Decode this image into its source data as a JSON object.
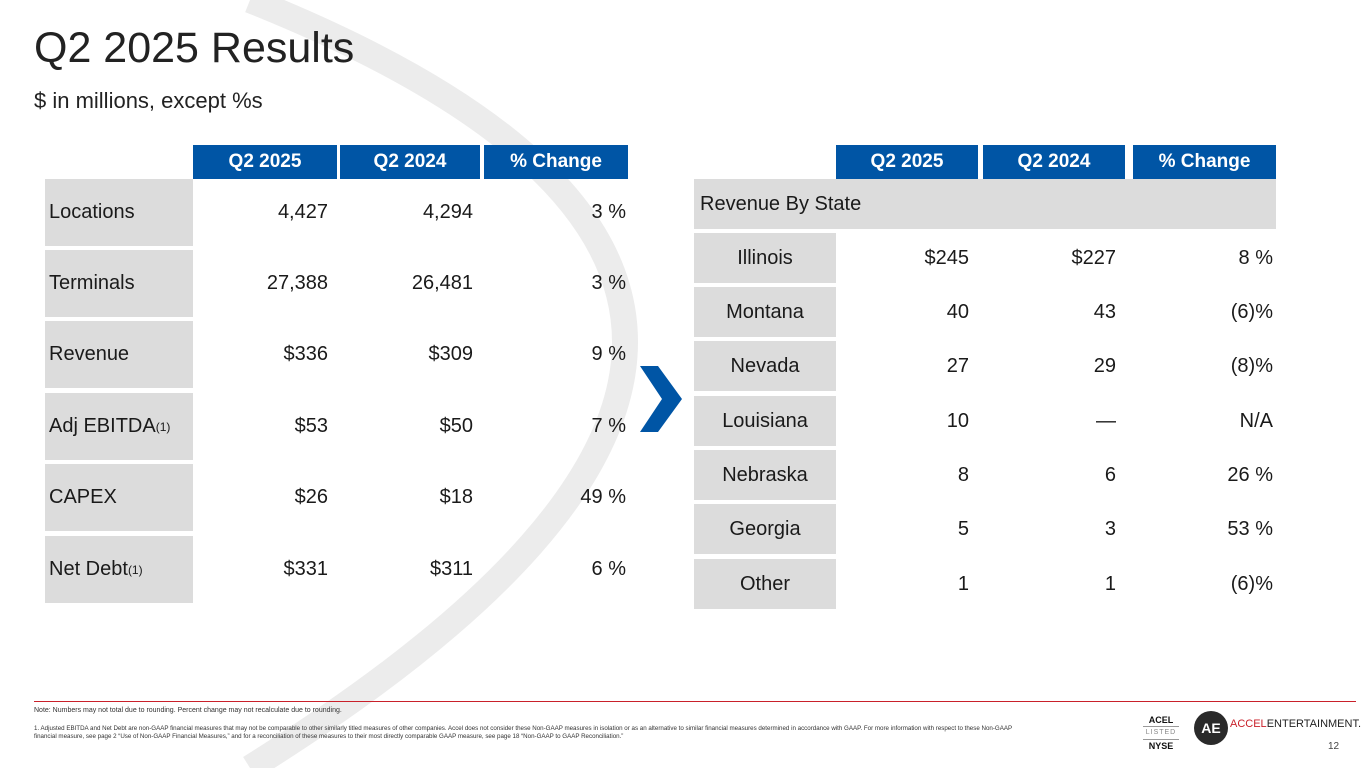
{
  "header": {
    "title": "Q2 2025 Results",
    "subtitle": "$ in millions, except %s"
  },
  "left_table": {
    "columns": [
      "Q2 2025",
      "Q2 2024",
      "% Change"
    ],
    "rows": [
      {
        "label": "Locations",
        "sup": "",
        "q2_2025": "4,427",
        "q2_2024": "4,294",
        "change": "3 %"
      },
      {
        "label": "Terminals",
        "sup": "",
        "q2_2025": "27,388",
        "q2_2024": "26,481",
        "change": "3 %"
      },
      {
        "label": "Revenue",
        "sup": "",
        "q2_2025": "$336",
        "q2_2024": "$309",
        "change": "9 %"
      },
      {
        "label": "Adj EBITDA",
        "sup": "(1)",
        "q2_2025": "$53",
        "q2_2024": "$50",
        "change": "7 %"
      },
      {
        "label": "CAPEX",
        "sup": "",
        "q2_2025": "$26",
        "q2_2024": "$18",
        "change": "49 %"
      },
      {
        "label": "Net Debt",
        "sup": "(1)",
        "q2_2025": "$331",
        "q2_2024": "$311",
        "change": "6 %"
      }
    ]
  },
  "right_table": {
    "columns": [
      "Q2 2025",
      "Q2 2024",
      "% Change"
    ],
    "section_label": "Revenue By State",
    "rows": [
      {
        "label": "Illinois",
        "q2_2025": "$245",
        "q2_2024": "$227",
        "change": "8 %"
      },
      {
        "label": "Montana",
        "q2_2025": "40",
        "q2_2024": "43",
        "change": "(6)%"
      },
      {
        "label": "Nevada",
        "q2_2025": "27",
        "q2_2024": "29",
        "change": "(8)%"
      },
      {
        "label": "Louisiana",
        "q2_2025": "10",
        "q2_2024": "—",
        "change": "N/A"
      },
      {
        "label": "Nebraska",
        "q2_2025": "8",
        "q2_2024": "6",
        "change": "26 %"
      },
      {
        "label": "Georgia",
        "q2_2025": "5",
        "q2_2024": "3",
        "change": "53 %"
      },
      {
        "label": "Other",
        "q2_2025": "1",
        "q2_2024": "1",
        "change": "(6)%"
      }
    ]
  },
  "footer": {
    "note": "Note: Numbers may not total due to rounding. Percent change may not recalculate due to rounding.",
    "footnote": "1.  Adjusted EBITDA and Net Debt are non-GAAP financial measures that may not be comparable to other similarly titled measures of other companies. Accel does not consider these Non-GAAP measures in isolation or as an alternative to similar financial measures determined in accordance with GAAP.  For more information with respect to these Non-GAAP financial measure, see page 2 “Use of Non-GAAP Financial Measures,” and for a reconciliation of these measures to their most directly comparable GAAP measure, see page 18 “Non-GAAP to GAAP Reconciliation.”",
    "nyse_ticker": "ACEL",
    "nyse_listed": "LISTED",
    "nyse_exchange": "NYSE",
    "logo_mark": "AE",
    "logo_accel": "ACCEL",
    "logo_entertainment": "ENTERTAINMENT.",
    "page_number": "12"
  },
  "colors": {
    "header_blue": "#0055a5",
    "label_gray": "#dcdcdc",
    "accent_red": "#c9202a"
  }
}
